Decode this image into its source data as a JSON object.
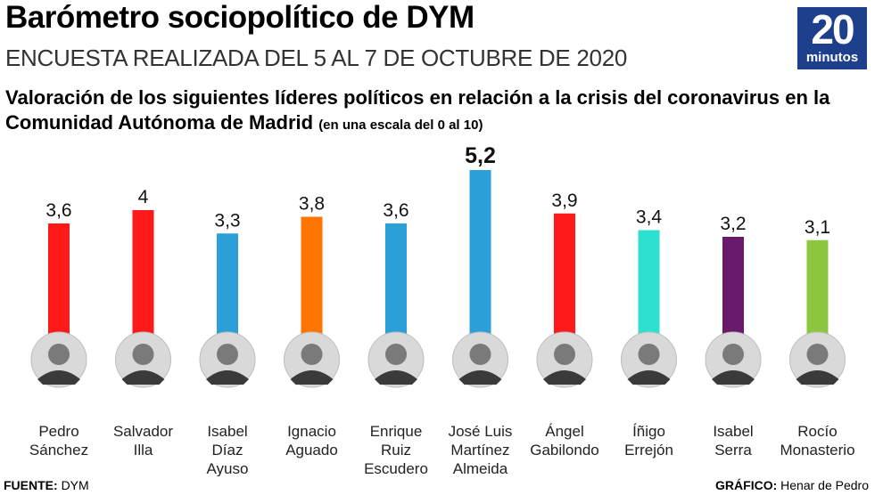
{
  "header": {
    "title": "Barómetro sociopolítico de DYM",
    "subtitle": "ENCUESTA REALIZADA DEL 5 AL 7 DE OCTUBRE DE 2020",
    "logo_number": "20",
    "logo_word": "minutos"
  },
  "question": {
    "text": "Valoración de los siguientes líderes políticos en relación a la crisis del coronavirus en la Comunidad Autónoma de Madrid",
    "scale_note": "(en una escala del 0 al 10)"
  },
  "chart_data": {
    "type": "bar",
    "categories": [
      [
        "Pedro",
        "Sánchez"
      ],
      [
        "Salvador",
        "Illa"
      ],
      [
        "Isabel",
        "Díaz",
        "Ayuso"
      ],
      [
        "Ignacio",
        "Aguado"
      ],
      [
        "Enrique",
        "Ruiz",
        "Escudero"
      ],
      [
        "José Luis",
        "Martínez",
        "Almeida"
      ],
      [
        "Ángel",
        "Gabilondo"
      ],
      [
        "Íñigo",
        "Errejón"
      ],
      [
        "Isabel",
        "Serra"
      ],
      [
        "Rocío",
        "Monasterio"
      ]
    ],
    "values": [
      3.6,
      4,
      3.3,
      3.8,
      3.6,
      5.2,
      3.9,
      3.4,
      3.2,
      3.1
    ],
    "value_labels": [
      "3,6",
      "4",
      "3,3",
      "3,8",
      "3,6",
      "5,2",
      "3,9",
      "3,4",
      "3,2",
      "3,1"
    ],
    "colors": [
      "#ff1a1a",
      "#ff1a1a",
      "#2a9fd8",
      "#ff7500",
      "#2a9fd8",
      "#2a9fd8",
      "#ff1a1a",
      "#2ee0d0",
      "#6a1a6a",
      "#8cc63f"
    ],
    "photo_icon": "portrait-photo"
  },
  "footer": {
    "source_label": "FUENTE:",
    "source_value": "DYM",
    "credit_label": "GRÁFICO:",
    "credit_value": "Henar de Pedro"
  }
}
